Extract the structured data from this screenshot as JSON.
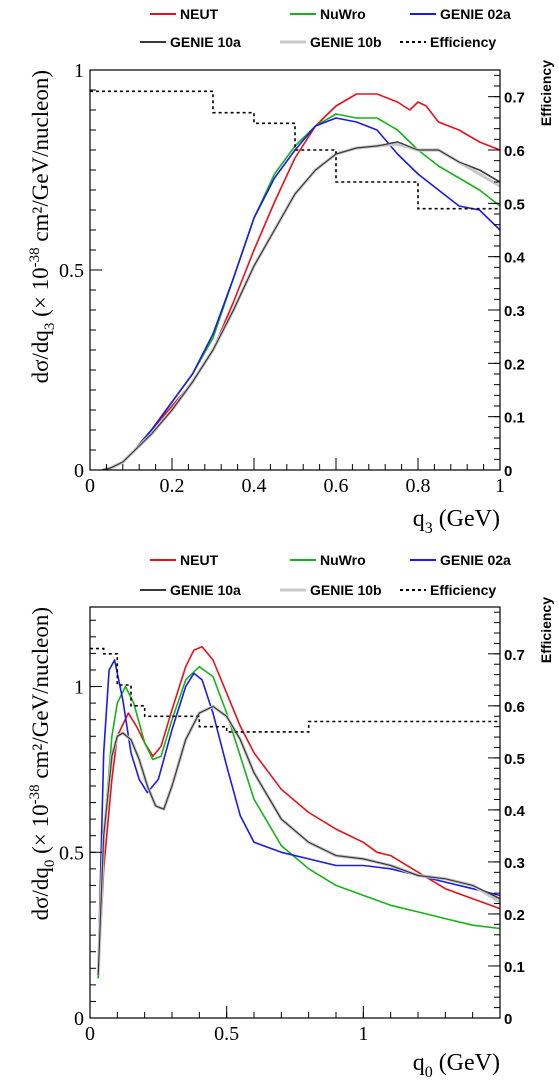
{
  "chart_data": [
    {
      "type": "line",
      "xlabel": "q",
      "xlabel_sub": "3",
      "xlabel_unit": "(GeV)",
      "ylabel": "dσ/dq",
      "ylabel_sub": "3",
      "ylabel_unit_pre": "(× 10",
      "ylabel_exp": "-38",
      "ylabel_unit_post": " cm²/GeV/nucleon)",
      "y2label": "Efficiency",
      "xlim": [
        0,
        1.0
      ],
      "ylim": [
        0,
        1.0
      ],
      "y2lim": [
        0,
        0.75
      ],
      "x_ticks": [
        0,
        0.2,
        0.4,
        0.6,
        0.8,
        1
      ],
      "x_tick_labels": [
        "0",
        "0.2",
        "0.4",
        "0.6",
        "0.8",
        "1"
      ],
      "y_ticks": [
        0,
        0.5,
        1
      ],
      "y_tick_labels": [
        "0",
        "0.5",
        "1"
      ],
      "y2_ticks": [
        0,
        0.1,
        0.2,
        0.3,
        0.4,
        0.5,
        0.6,
        0.7
      ],
      "y2_tick_labels": [
        "0",
        "0.1",
        "0.2",
        "0.3",
        "0.4",
        "0.5",
        "0.6",
        "0.7"
      ],
      "legend_position": "top",
      "series": [
        {
          "name": "NEUT",
          "color": "#e8101a",
          "style": "solid",
          "x": [
            0.03,
            0.05,
            0.08,
            0.1,
            0.15,
            0.2,
            0.25,
            0.3,
            0.35,
            0.4,
            0.45,
            0.5,
            0.55,
            0.6,
            0.65,
            0.7,
            0.75,
            0.78,
            0.8,
            0.82,
            0.85,
            0.9,
            0.95,
            1.0
          ],
          "y": [
            0.0,
            0.005,
            0.02,
            0.04,
            0.1,
            0.16,
            0.22,
            0.3,
            0.42,
            0.55,
            0.67,
            0.78,
            0.86,
            0.91,
            0.94,
            0.94,
            0.92,
            0.9,
            0.92,
            0.91,
            0.87,
            0.85,
            0.82,
            0.8
          ]
        },
        {
          "name": "NuWro",
          "color": "#16b318",
          "style": "solid",
          "x": [
            0.03,
            0.05,
            0.08,
            0.1,
            0.15,
            0.2,
            0.25,
            0.3,
            0.35,
            0.4,
            0.45,
            0.5,
            0.55,
            0.6,
            0.65,
            0.7,
            0.75,
            0.8,
            0.85,
            0.9,
            0.95,
            1.0
          ],
          "y": [
            0.0,
            0.005,
            0.02,
            0.04,
            0.1,
            0.17,
            0.24,
            0.33,
            0.48,
            0.63,
            0.74,
            0.81,
            0.86,
            0.89,
            0.88,
            0.88,
            0.85,
            0.8,
            0.76,
            0.73,
            0.7,
            0.66
          ]
        },
        {
          "name": "GENIE 02a",
          "color": "#1a1aeb",
          "style": "solid",
          "x": [
            0.03,
            0.05,
            0.08,
            0.1,
            0.15,
            0.2,
            0.25,
            0.3,
            0.35,
            0.4,
            0.45,
            0.5,
            0.55,
            0.6,
            0.65,
            0.7,
            0.75,
            0.8,
            0.85,
            0.9,
            0.95,
            1.0
          ],
          "y": [
            0.0,
            0.005,
            0.02,
            0.04,
            0.1,
            0.17,
            0.24,
            0.34,
            0.48,
            0.63,
            0.73,
            0.8,
            0.86,
            0.88,
            0.87,
            0.85,
            0.79,
            0.74,
            0.7,
            0.66,
            0.65,
            0.6
          ]
        },
        {
          "name": "GENIE 10a",
          "color": "#3a3a3a",
          "style": "solid",
          "x": [
            0.03,
            0.05,
            0.08,
            0.1,
            0.15,
            0.2,
            0.25,
            0.3,
            0.35,
            0.4,
            0.45,
            0.5,
            0.55,
            0.6,
            0.65,
            0.7,
            0.75,
            0.8,
            0.85,
            0.9,
            0.95,
            1.0
          ],
          "y": [
            0.0,
            0.005,
            0.02,
            0.04,
            0.09,
            0.15,
            0.22,
            0.3,
            0.4,
            0.51,
            0.6,
            0.69,
            0.75,
            0.79,
            0.805,
            0.81,
            0.82,
            0.8,
            0.8,
            0.77,
            0.75,
            0.72
          ]
        },
        {
          "name": "GENIE 10b",
          "color": "#c8c8c8",
          "style": "solid",
          "x": [
            0.03,
            0.05,
            0.08,
            0.1,
            0.15,
            0.2,
            0.25,
            0.3,
            0.35,
            0.4,
            0.45,
            0.5,
            0.55,
            0.6,
            0.65,
            0.7,
            0.75,
            0.8,
            0.85,
            0.9,
            0.95,
            1.0
          ],
          "y": [
            0.0,
            0.005,
            0.02,
            0.04,
            0.09,
            0.15,
            0.22,
            0.3,
            0.4,
            0.51,
            0.6,
            0.69,
            0.75,
            0.79,
            0.805,
            0.81,
            0.815,
            0.8,
            0.8,
            0.77,
            0.74,
            0.71
          ]
        },
        {
          "name": "Efficiency",
          "color": "#000000",
          "style": "dotted",
          "axis": "right",
          "step": true,
          "x": [
            0,
            0.3,
            0.4,
            0.5,
            0.6,
            0.8,
            1.0
          ],
          "y": [
            0.71,
            0.67,
            0.65,
            0.6,
            0.54,
            0.49,
            0.49
          ]
        }
      ]
    },
    {
      "type": "line",
      "xlabel": "q",
      "xlabel_sub": "0",
      "xlabel_unit": "(GeV)",
      "ylabel": "dσ/dq",
      "ylabel_sub": "0",
      "ylabel_unit_pre": "(× 10",
      "ylabel_exp": "-38",
      "ylabel_unit_post": " cm²/GeV/nucleon)",
      "y2label": "Efficiency",
      "xlim": [
        0,
        1.5
      ],
      "ylim": [
        0,
        1.24
      ],
      "y2lim": [
        0,
        0.79
      ],
      "x_ticks": [
        0,
        0.5,
        1
      ],
      "x_tick_labels": [
        "0",
        "0.5",
        "1"
      ],
      "y_ticks": [
        0,
        0.5,
        1
      ],
      "y_tick_labels": [
        "0",
        "0.5",
        "1"
      ],
      "y2_ticks": [
        0,
        0.1,
        0.2,
        0.3,
        0.4,
        0.5,
        0.6,
        0.7
      ],
      "y2_tick_labels": [
        "0",
        "0.1",
        "0.2",
        "0.3",
        "0.4",
        "0.5",
        "0.6",
        "0.7"
      ],
      "legend_position": "top",
      "series": [
        {
          "name": "NEUT",
          "color": "#e8101a",
          "style": "solid",
          "x": [
            0.03,
            0.05,
            0.08,
            0.1,
            0.14,
            0.17,
            0.2,
            0.23,
            0.26,
            0.3,
            0.35,
            0.38,
            0.41,
            0.45,
            0.5,
            0.55,
            0.6,
            0.7,
            0.8,
            0.9,
            1.0,
            1.05,
            1.1,
            1.2,
            1.3,
            1.4,
            1.5
          ],
          "y": [
            0.12,
            0.45,
            0.72,
            0.85,
            0.92,
            0.88,
            0.83,
            0.79,
            0.82,
            0.93,
            1.06,
            1.11,
            1.12,
            1.08,
            0.98,
            0.88,
            0.8,
            0.69,
            0.62,
            0.57,
            0.53,
            0.5,
            0.49,
            0.44,
            0.39,
            0.36,
            0.33
          ]
        },
        {
          "name": "NuWro",
          "color": "#16b318",
          "style": "solid",
          "x": [
            0.03,
            0.05,
            0.08,
            0.1,
            0.13,
            0.16,
            0.2,
            0.23,
            0.26,
            0.3,
            0.35,
            0.4,
            0.45,
            0.5,
            0.55,
            0.6,
            0.7,
            0.8,
            0.9,
            1.0,
            1.1,
            1.2,
            1.3,
            1.4,
            1.5
          ],
          "y": [
            0.12,
            0.55,
            0.85,
            0.95,
            1.0,
            0.95,
            0.83,
            0.78,
            0.79,
            0.9,
            1.02,
            1.06,
            1.03,
            0.92,
            0.79,
            0.66,
            0.52,
            0.45,
            0.4,
            0.37,
            0.34,
            0.32,
            0.3,
            0.28,
            0.27
          ]
        },
        {
          "name": "GENIE 02a",
          "color": "#1a1aeb",
          "style": "solid",
          "x": [
            0.03,
            0.05,
            0.07,
            0.09,
            0.12,
            0.15,
            0.18,
            0.21,
            0.25,
            0.3,
            0.35,
            0.38,
            0.41,
            0.45,
            0.5,
            0.55,
            0.6,
            0.7,
            0.8,
            0.9,
            1.0,
            1.1,
            1.2,
            1.3,
            1.4,
            1.5
          ],
          "y": [
            0.15,
            0.8,
            1.05,
            1.08,
            0.96,
            0.8,
            0.72,
            0.68,
            0.72,
            0.87,
            1.0,
            1.04,
            1.02,
            0.92,
            0.76,
            0.61,
            0.53,
            0.5,
            0.48,
            0.46,
            0.46,
            0.45,
            0.43,
            0.41,
            0.39,
            0.37
          ]
        },
        {
          "name": "GENIE 10a",
          "color": "#3a3a3a",
          "style": "solid",
          "x": [
            0.03,
            0.05,
            0.08,
            0.1,
            0.12,
            0.15,
            0.18,
            0.21,
            0.24,
            0.27,
            0.3,
            0.35,
            0.4,
            0.45,
            0.5,
            0.55,
            0.6,
            0.7,
            0.8,
            0.9,
            1.0,
            1.1,
            1.2,
            1.3,
            1.4,
            1.5
          ],
          "y": [
            0.13,
            0.55,
            0.79,
            0.85,
            0.86,
            0.84,
            0.78,
            0.7,
            0.64,
            0.63,
            0.7,
            0.84,
            0.92,
            0.94,
            0.91,
            0.84,
            0.74,
            0.6,
            0.53,
            0.49,
            0.48,
            0.46,
            0.43,
            0.42,
            0.4,
            0.36
          ]
        },
        {
          "name": "GENIE 10b",
          "color": "#c8c8c8",
          "style": "solid",
          "x": [
            0.03,
            0.05,
            0.08,
            0.1,
            0.12,
            0.15,
            0.18,
            0.21,
            0.24,
            0.27,
            0.3,
            0.35,
            0.4,
            0.45,
            0.5,
            0.55,
            0.6,
            0.7,
            0.8,
            0.9,
            1.0,
            1.1,
            1.2,
            1.3,
            1.4,
            1.5
          ],
          "y": [
            0.13,
            0.55,
            0.79,
            0.85,
            0.86,
            0.84,
            0.78,
            0.7,
            0.64,
            0.63,
            0.7,
            0.84,
            0.92,
            0.94,
            0.91,
            0.84,
            0.74,
            0.6,
            0.53,
            0.49,
            0.48,
            0.46,
            0.43,
            0.42,
            0.4,
            0.35
          ]
        },
        {
          "name": "Efficiency",
          "color": "#000000",
          "style": "dotted",
          "axis": "right",
          "step": true,
          "x": [
            0,
            0.05,
            0.1,
            0.15,
            0.2,
            0.4,
            0.5,
            0.8,
            1.5
          ],
          "y": [
            0.71,
            0.7,
            0.64,
            0.6,
            0.58,
            0.56,
            0.55,
            0.57,
            0.57
          ]
        }
      ]
    }
  ]
}
